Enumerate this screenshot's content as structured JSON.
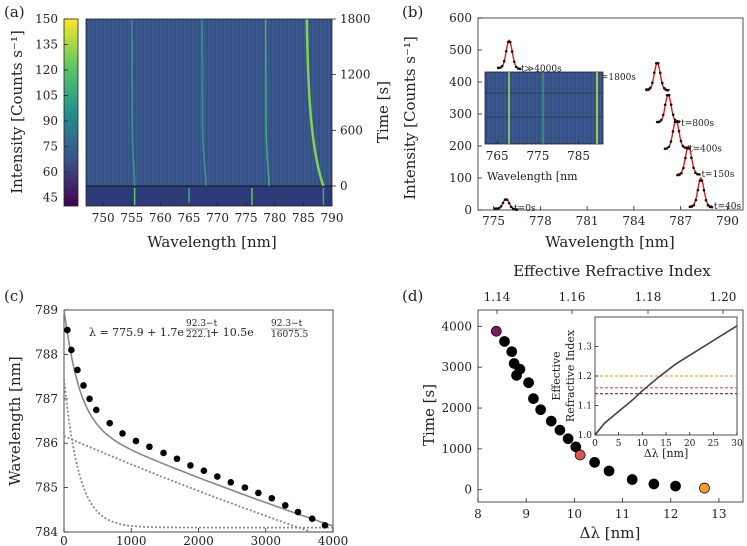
{
  "panels": {
    "a": "(a)",
    "b": "(b)",
    "c": "(c)",
    "d": "(d)"
  },
  "chart_data": [
    {
      "id": "a",
      "type": "heatmap",
      "xlabel": "Wavelength [nm]",
      "ylabel_left": "Intensity [Counts s⁻¹]",
      "ylabel_right": "Time [s]",
      "xlim": [
        747,
        790
      ],
      "xticks": [
        750,
        755,
        760,
        765,
        770,
        775,
        780,
        785,
        790
      ],
      "colorbar_range": [
        40,
        150
      ],
      "colorbar_ticks": [
        45,
        60,
        75,
        90,
        105,
        120,
        135,
        150
      ],
      "time_ticks": [
        0,
        600,
        1200,
        1800
      ],
      "colormap": [
        "#440154",
        "#3b528b",
        "#21918c",
        "#5ec962",
        "#fde725"
      ],
      "traces": [
        {
          "start_nm": 755.5,
          "end_nm": 755.0,
          "intensity": "weak"
        },
        {
          "start_nm": 768.0,
          "end_nm": 767.3,
          "intensity": "weak"
        },
        {
          "start_nm": 779.0,
          "end_nm": 778.4,
          "intensity": "medium"
        },
        {
          "start_nm": 788.5,
          "end_nm": 785.6,
          "intensity": "strong"
        }
      ]
    },
    {
      "id": "b",
      "type": "line",
      "xlabel": "Wavelength [nm]",
      "ylabel": "Intensity [Counts s⁻¹]",
      "xlim": [
        774,
        791
      ],
      "ylim": [
        0,
        600
      ],
      "xticks": [
        775,
        778,
        781,
        784,
        787,
        790
      ],
      "yticks": [
        0,
        100,
        200,
        300,
        400,
        500,
        600
      ],
      "colors": {
        "data": "#111111",
        "fit": "#e41a1c"
      },
      "series": [
        {
          "name": "t≫4000s",
          "peak_nm": 776.0,
          "peak_intensity": 530
        },
        {
          "name": "t=1800s",
          "peak_nm": 785.5,
          "peak_intensity": 460
        },
        {
          "name": "t=800s",
          "peak_nm": 786.2,
          "peak_intensity": 360
        },
        {
          "name": "t=400s",
          "peak_nm": 786.7,
          "peak_intensity": 280
        },
        {
          "name": "t=150s",
          "peak_nm": 787.5,
          "peak_intensity": 200
        },
        {
          "name": "t=40s",
          "peak_nm": 788.3,
          "peak_intensity": 100
        },
        {
          "name": "t=0s",
          "peak_nm": 775.8,
          "peak_intensity": 35
        }
      ],
      "inset": {
        "type": "heatmap",
        "xlabel": "Wavelength [nm",
        "xticks": [
          765,
          775,
          785
        ],
        "xlim": [
          762,
          791
        ]
      }
    },
    {
      "id": "c",
      "type": "scatter",
      "xlabel": "Time [s]",
      "ylabel": "Wavelength [nm]",
      "xlim": [
        0,
        4000
      ],
      "ylim": [
        784,
        789
      ],
      "xticks": [
        0,
        1000,
        2000,
        3000,
        4000
      ],
      "yticks": [
        784,
        785,
        786,
        787,
        788,
        789
      ],
      "formula_main": "λ = 775.9 + 1.7e",
      "formula_exp1": "92.3−t",
      "formula_den1": "222.1",
      "formula_mid": " + 10.5e",
      "formula_exp2": "92.3−t",
      "formula_den2": "16075.5",
      "fit": {
        "c0": 775.9,
        "a1": 1.7,
        "tau1": 222.1,
        "a2": 10.5,
        "tau2": 16075.5,
        "t0": 92.3
      },
      "points": [
        [
          50,
          788.55
        ],
        [
          110,
          788.1
        ],
        [
          200,
          787.65
        ],
        [
          290,
          787.3
        ],
        [
          380,
          787.0
        ],
        [
          480,
          786.75
        ],
        [
          680,
          786.45
        ],
        [
          870,
          786.22
        ],
        [
          1070,
          786.05
        ],
        [
          1270,
          785.92
        ],
        [
          1480,
          785.78
        ],
        [
          1680,
          785.65
        ],
        [
          1880,
          785.5
        ],
        [
          2080,
          785.38
        ],
        [
          2280,
          785.25
        ],
        [
          2480,
          785.12
        ],
        [
          2690,
          785.0
        ],
        [
          2890,
          784.88
        ],
        [
          3090,
          784.76
        ],
        [
          3290,
          784.6
        ],
        [
          3480,
          784.45
        ],
        [
          3690,
          784.3
        ],
        [
          3880,
          784.15
        ]
      ]
    },
    {
      "id": "d",
      "type": "scatter",
      "xlabel": "Δλ [nm]",
      "ylabel": "Time [s]",
      "top_label": "Effective Refractive Index",
      "xlim": [
        8,
        13.5
      ],
      "ylim": [
        -300,
        4400
      ],
      "xticks": [
        8,
        9,
        10,
        11,
        12,
        13
      ],
      "yticks": [
        0,
        1000,
        2000,
        3000,
        4000
      ],
      "top_ticks": [
        1.14,
        1.16,
        1.18,
        1.2
      ],
      "highlight_colors": {
        "early": "#7a1f5c",
        "mid": "#d9534f",
        "late": "#f0a030"
      },
      "points": [
        [
          8.38,
          3880,
          "early"
        ],
        [
          8.55,
          3630
        ],
        [
          8.7,
          3380
        ],
        [
          8.75,
          3090
        ],
        [
          8.87,
          2950
        ],
        [
          8.8,
          2800
        ],
        [
          9.05,
          2620
        ],
        [
          9.15,
          2230
        ],
        [
          9.3,
          1960
        ],
        [
          9.52,
          1680
        ],
        [
          9.7,
          1460
        ],
        [
          9.87,
          1250
        ],
        [
          10.03,
          1050
        ],
        [
          10.12,
          850,
          "mid"
        ],
        [
          10.42,
          670
        ],
        [
          10.72,
          460
        ],
        [
          11.2,
          250
        ],
        [
          11.65,
          140
        ],
        [
          12.1,
          90
        ],
        [
          12.7,
          40,
          "late"
        ]
      ],
      "inset": {
        "xlabel": "Δλ [nm]",
        "ylabel": "Effective Refractive Index",
        "xlim": [
          0,
          30
        ],
        "ylim": [
          1.0,
          1.4
        ],
        "xticks": [
          0,
          5,
          10,
          15,
          20,
          25,
          30
        ],
        "yticks": [
          1.0,
          1.1,
          1.2,
          1.3
        ],
        "curve": [
          [
            0,
            1.0
          ],
          [
            2,
            1.04
          ],
          [
            5,
            1.08
          ],
          [
            8,
            1.12
          ],
          [
            10,
            1.15
          ],
          [
            13,
            1.19
          ],
          [
            17,
            1.24
          ],
          [
            22,
            1.29
          ],
          [
            26,
            1.33
          ],
          [
            30,
            1.37
          ]
        ],
        "hlines": [
          {
            "y": 1.2,
            "color": "#f0a030"
          },
          {
            "y": 1.16,
            "color": "#d9534f"
          },
          {
            "y": 1.14,
            "color": "#7a1f5c"
          }
        ]
      }
    }
  ]
}
